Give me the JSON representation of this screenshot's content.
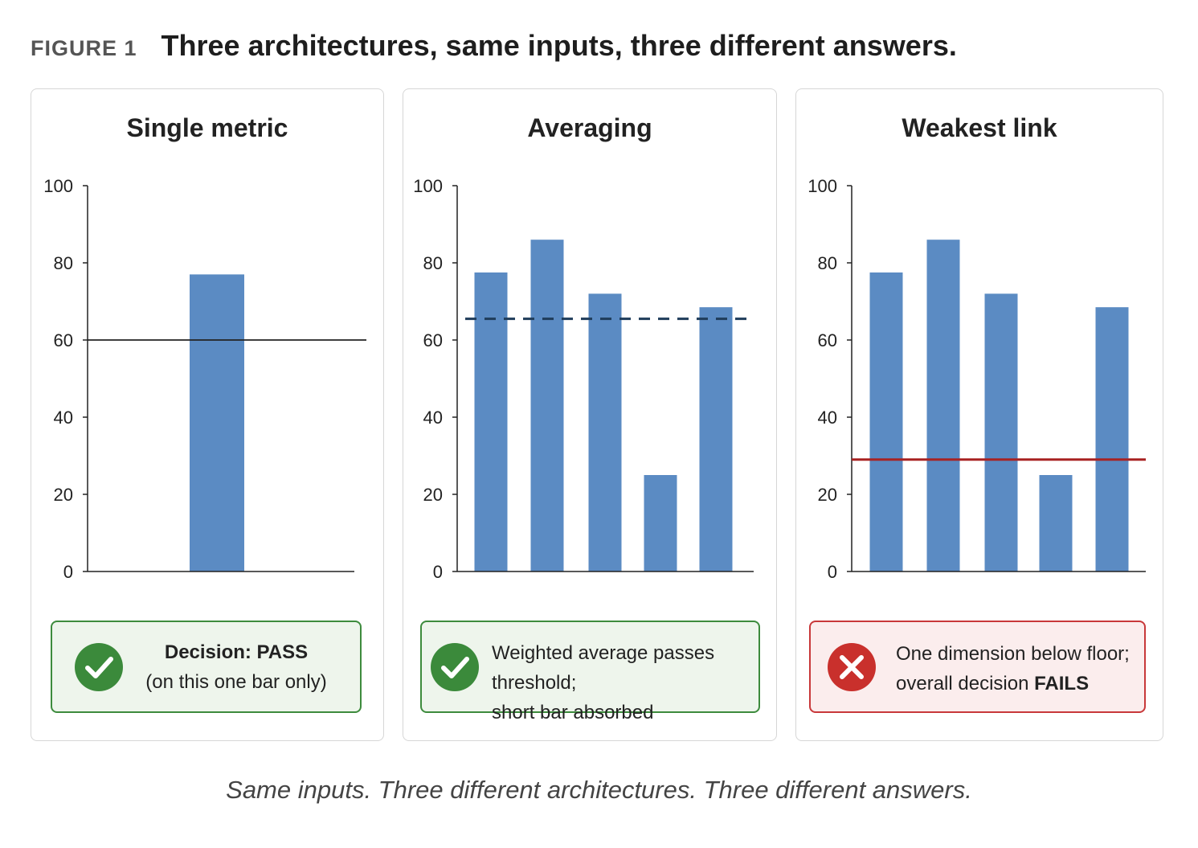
{
  "figure": {
    "label": "FIGURE 1",
    "title": "Three architectures, same inputs, three different answers.",
    "caption": "Same inputs. Three different architectures. Three different answers."
  },
  "colors": {
    "bar": "#5b8bc3",
    "threshold_solid": "#222222",
    "threshold_dashed": "#1f3c5a",
    "threshold_floor": "#a82222",
    "pass_border": "#3d8b3d",
    "pass_bg": "#eef5ec",
    "pass_icon": "#3b8a3b",
    "fail_border": "#c8383a",
    "fail_bg": "#fbeded",
    "fail_icon": "#c9302c"
  },
  "chart_data": [
    {
      "type": "bar",
      "title": "Single metric",
      "ylim": [
        0,
        100
      ],
      "yticks": [
        0,
        20,
        40,
        60,
        80,
        100
      ],
      "values": [
        77
      ],
      "threshold": {
        "value": 60,
        "style": "solid"
      },
      "decision": {
        "status": "pass",
        "icon": "check-icon",
        "line1": "Decision: PASS",
        "line2": "(on this one bar only)"
      }
    },
    {
      "type": "bar",
      "title": "Averaging",
      "ylim": [
        0,
        100
      ],
      "yticks": [
        0,
        20,
        40,
        60,
        80,
        100
      ],
      "values": [
        77.5,
        86,
        72,
        25,
        68.5
      ],
      "threshold": {
        "value": 65.5,
        "style": "dashed"
      },
      "decision": {
        "status": "pass",
        "icon": "check-icon",
        "line1": "Weighted average passes threshold;",
        "line2": "short bar absorbed"
      }
    },
    {
      "type": "bar",
      "title": "Weakest link",
      "ylim": [
        0,
        100
      ],
      "yticks": [
        0,
        20,
        40,
        60,
        80,
        100
      ],
      "values": [
        77.5,
        86,
        72,
        25,
        68.5
      ],
      "threshold": {
        "value": 29,
        "style": "floor"
      },
      "decision": {
        "status": "fail",
        "icon": "x-icon",
        "line1": "One dimension below floor;",
        "line2_prefix": "overall decision ",
        "line2_bold": "FAILS"
      }
    }
  ]
}
